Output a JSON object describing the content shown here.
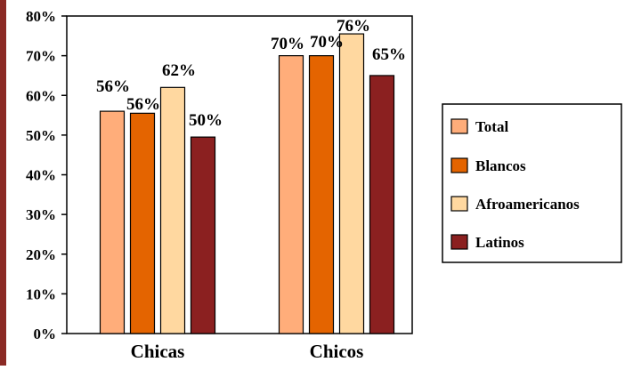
{
  "chart_data": {
    "type": "bar",
    "categories": [
      "Chicas",
      "Chicos"
    ],
    "series": [
      {
        "name": "Total",
        "values": [
          56,
          70
        ],
        "color": "#FFAD7A",
        "labels": [
          "56%",
          "70%"
        ]
      },
      {
        "name": "Blancos",
        "values": [
          55.5,
          70
        ],
        "color": "#E46400",
        "labels": [
          "56%",
          "70%"
        ]
      },
      {
        "name": "Afroamericanos",
        "values": [
          62,
          75.5
        ],
        "color": "#FFD8A0",
        "labels": [
          "62%",
          "76%"
        ]
      },
      {
        "name": "Latinos",
        "values": [
          49.5,
          65
        ],
        "color": "#8B2020",
        "labels": [
          "50%",
          "65%"
        ]
      }
    ],
    "ylim": [
      0,
      80
    ],
    "yticks": [
      0,
      10,
      20,
      30,
      40,
      50,
      60,
      70,
      80
    ],
    "ytick_labels": [
      "0%",
      "10%",
      "20%",
      "30%",
      "40%",
      "50%",
      "60%",
      "70%",
      "80%"
    ],
    "grid": false,
    "legend_position": "right",
    "title": "",
    "xlabel": "",
    "ylabel": ""
  },
  "colors": {
    "left_strip": "#8B2A25",
    "axis": "#000000"
  }
}
